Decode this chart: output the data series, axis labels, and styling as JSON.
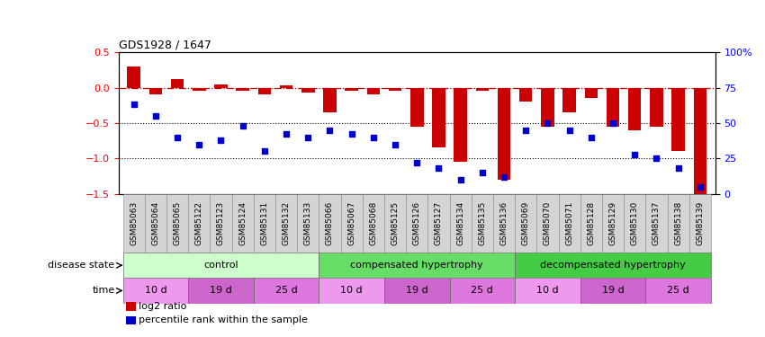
{
  "title": "GDS1928 / 1647",
  "samples": [
    "GSM85063",
    "GSM85064",
    "GSM85065",
    "GSM85122",
    "GSM85123",
    "GSM85124",
    "GSM85131",
    "GSM85132",
    "GSM85133",
    "GSM85066",
    "GSM85067",
    "GSM85068",
    "GSM85125",
    "GSM85126",
    "GSM85127",
    "GSM85134",
    "GSM85135",
    "GSM85136",
    "GSM85069",
    "GSM85070",
    "GSM85071",
    "GSM85128",
    "GSM85129",
    "GSM85130",
    "GSM85137",
    "GSM85138",
    "GSM85139"
  ],
  "log2_ratio": [
    0.3,
    -0.1,
    0.12,
    -0.05,
    0.05,
    -0.05,
    -0.1,
    0.03,
    -0.07,
    -0.35,
    -0.05,
    -0.1,
    -0.05,
    -0.55,
    -0.85,
    -1.05,
    -0.05,
    -1.3,
    -0.2,
    -0.55,
    -0.35,
    -0.15,
    -0.55,
    -0.6,
    -0.55,
    -0.9,
    -1.55
  ],
  "percentile_rank": [
    63,
    55,
    40,
    35,
    38,
    48,
    30,
    42,
    40,
    45,
    42,
    40,
    35,
    22,
    18,
    10,
    15,
    12,
    45,
    50,
    45,
    40,
    50,
    28,
    25,
    18,
    5
  ],
  "bar_color": "#cc0000",
  "dot_color": "#0000cc",
  "ylim_left": [
    -1.5,
    0.5
  ],
  "ylim_right": [
    0,
    100
  ],
  "yticks_left": [
    -1.5,
    -1.0,
    -0.5,
    0.0,
    0.5
  ],
  "yticks_right": [
    0,
    25,
    50,
    75,
    100
  ],
  "ytick_labels_right": [
    "0",
    "25",
    "50",
    "75",
    "100%"
  ],
  "disease_groups": [
    {
      "label": "control",
      "start": 0,
      "end": 9,
      "color": "#ccffcc"
    },
    {
      "label": "compensated hypertrophy",
      "start": 9,
      "end": 18,
      "color": "#66dd66"
    },
    {
      "label": "decompensated hypertrophy",
      "start": 18,
      "end": 27,
      "color": "#44cc44"
    }
  ],
  "time_groups": [
    {
      "label": "10 d",
      "start": 0,
      "end": 3,
      "color": "#ee99ee"
    },
    {
      "label": "19 d",
      "start": 3,
      "end": 6,
      "color": "#cc66cc"
    },
    {
      "label": "25 d",
      "start": 6,
      "end": 9,
      "color": "#dd77dd"
    },
    {
      "label": "10 d",
      "start": 9,
      "end": 12,
      "color": "#ee99ee"
    },
    {
      "label": "19 d",
      "start": 12,
      "end": 15,
      "color": "#cc66cc"
    },
    {
      "label": "25 d",
      "start": 15,
      "end": 18,
      "color": "#dd77dd"
    },
    {
      "label": "10 d",
      "start": 18,
      "end": 21,
      "color": "#ee99ee"
    },
    {
      "label": "19 d",
      "start": 21,
      "end": 24,
      "color": "#cc66cc"
    },
    {
      "label": "25 d",
      "start": 24,
      "end": 27,
      "color": "#dd77dd"
    }
  ],
  "sample_bg_color": "#cccccc",
  "sample_label_fontsize": 6.5,
  "legend_items": [
    {
      "label": "log2 ratio",
      "color": "#cc0000"
    },
    {
      "label": "percentile rank within the sample",
      "color": "#0000cc"
    }
  ]
}
